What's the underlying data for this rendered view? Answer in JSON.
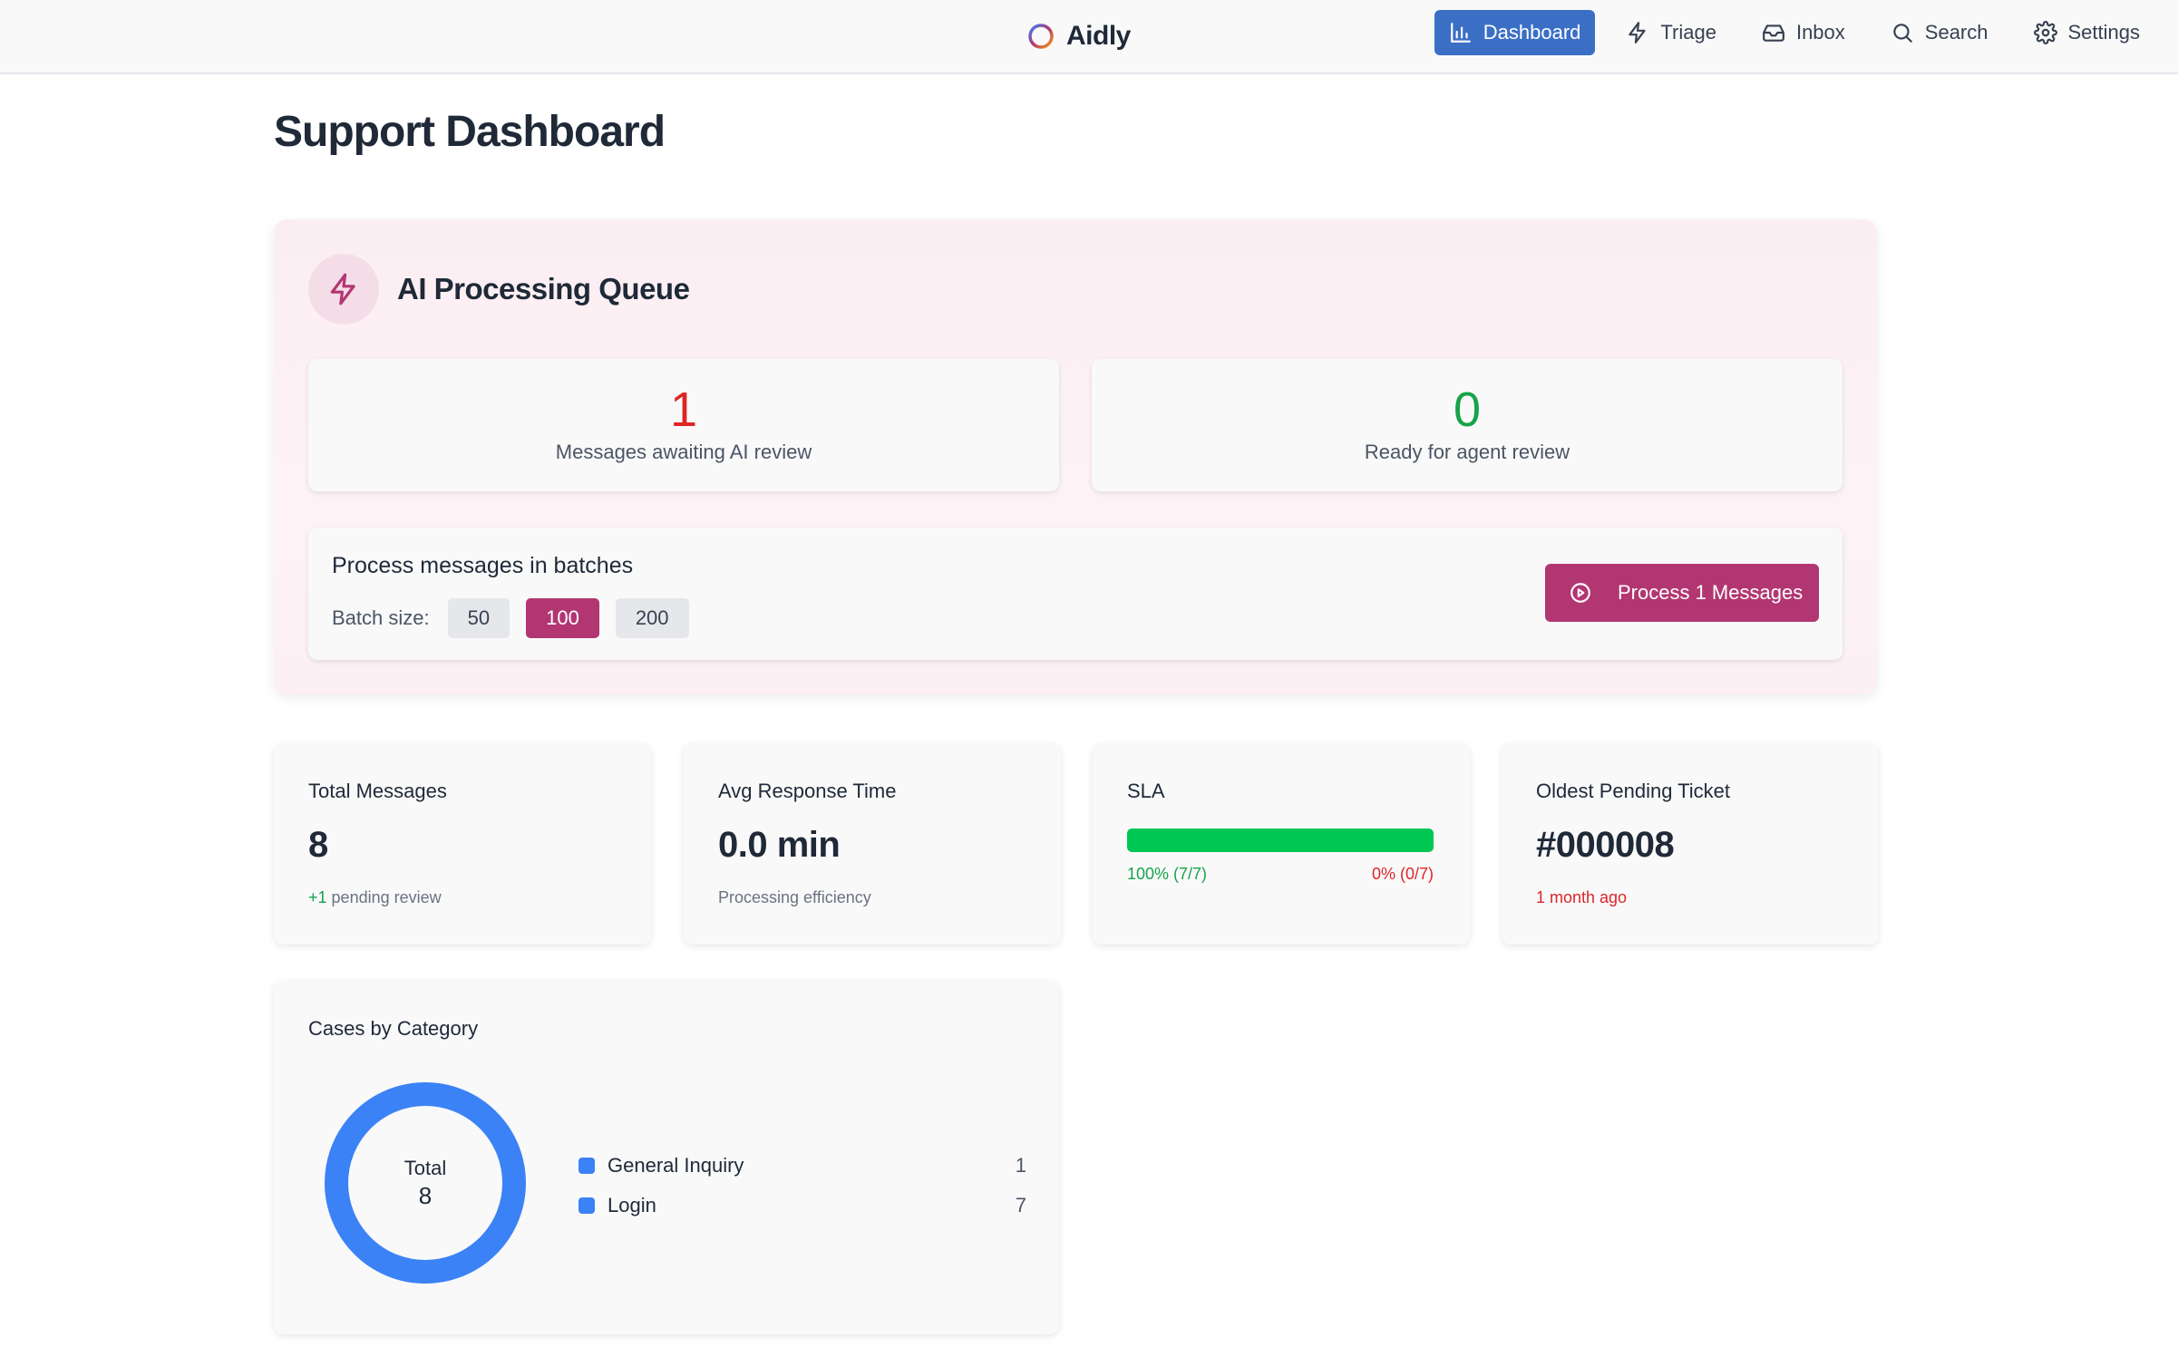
{
  "app": {
    "name": "Aidly"
  },
  "nav": [
    {
      "id": "dashboard",
      "label": "Dashboard",
      "icon": "bar-chart-icon",
      "active": true
    },
    {
      "id": "triage",
      "label": "Triage",
      "icon": "lightning-icon",
      "active": false
    },
    {
      "id": "inbox",
      "label": "Inbox",
      "icon": "inbox-icon",
      "active": false
    },
    {
      "id": "search",
      "label": "Search",
      "icon": "search-icon",
      "active": false
    },
    {
      "id": "settings",
      "label": "Settings",
      "icon": "gear-icon",
      "active": false
    }
  ],
  "page": {
    "title": "Support Dashboard"
  },
  "queue": {
    "title": "AI Processing Queue",
    "awaiting": {
      "value": "1",
      "label": "Messages awaiting AI review",
      "color": "#dc2626"
    },
    "ready": {
      "value": "0",
      "label": "Ready for agent review",
      "color": "#16a34a"
    },
    "batch": {
      "title": "Process messages in batches",
      "size_label": "Batch size:",
      "options": [
        "50",
        "100",
        "200"
      ],
      "selected": "100",
      "button_label": "Process 1 Messages"
    }
  },
  "metrics": {
    "total": {
      "title": "Total Messages",
      "value": "8",
      "delta": "+1",
      "sub": "pending review"
    },
    "response": {
      "title": "Avg Response Time",
      "value": "0.0 min",
      "sub": "Processing efficiency"
    },
    "sla": {
      "title": "SLA",
      "met_label": "100% (7/7)",
      "missed_label": "0% (0/7)",
      "met_fraction": 1.0
    },
    "oldest": {
      "title": "Oldest Pending Ticket",
      "value": "#000008",
      "sub": "1 month ago"
    }
  },
  "categories": {
    "title": "Cases by Category",
    "total_label": "Total",
    "total_value": "8",
    "items": [
      {
        "name": "General Inquiry",
        "count": "1",
        "color": "#3b82f6"
      },
      {
        "name": "Login",
        "count": "7",
        "color": "#3b82f6"
      }
    ],
    "ring_color": "#3b82f6"
  },
  "colors": {
    "accent": "#b23672",
    "nav_active": "#3b6fc6"
  }
}
